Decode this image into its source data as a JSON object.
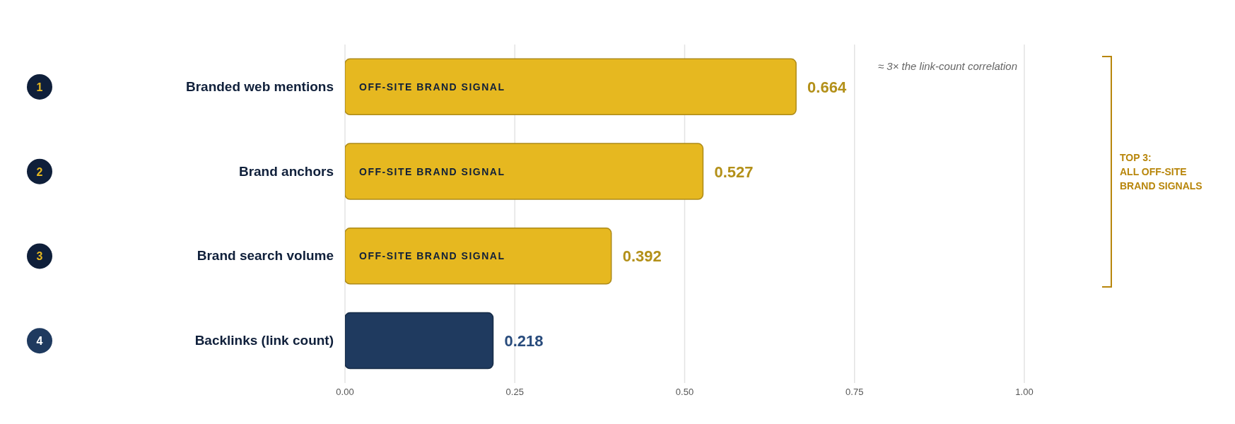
{
  "chart_data": {
    "type": "bar",
    "orientation": "horizontal",
    "categories": [
      "Branded web mentions",
      "Brand anchors",
      "Brand search volume",
      "Backlinks (link count)"
    ],
    "values": [
      0.664,
      0.527,
      0.392,
      0.218
    ],
    "colors": [
      "#e6b820",
      "#e6b820",
      "#e6b820",
      "#1f3a5f"
    ],
    "xlim": [
      0,
      1
    ],
    "xticks": [
      {
        "value": 0,
        "label": "0.00"
      },
      {
        "value": 0.25,
        "label": "0.25"
      },
      {
        "value": 0.5,
        "label": "0.50"
      },
      {
        "value": 0.75,
        "label": "0.75"
      },
      {
        "value": 1,
        "label": "1.00"
      }
    ],
    "grid": "x",
    "data_labels": true,
    "annotations": [
      "1",
      "2",
      "3",
      "4",
      "OFF-SITE BRAND SIGNAL",
      "OFF-SITE BRAND SIGNAL",
      "OFF-SITE BRAND SIGNAL",
      "≈ 3× the link-count correlation",
      "TOP 3:\nALL OFF-SITE\nBRAND SIGNALS"
    ]
  }
}
